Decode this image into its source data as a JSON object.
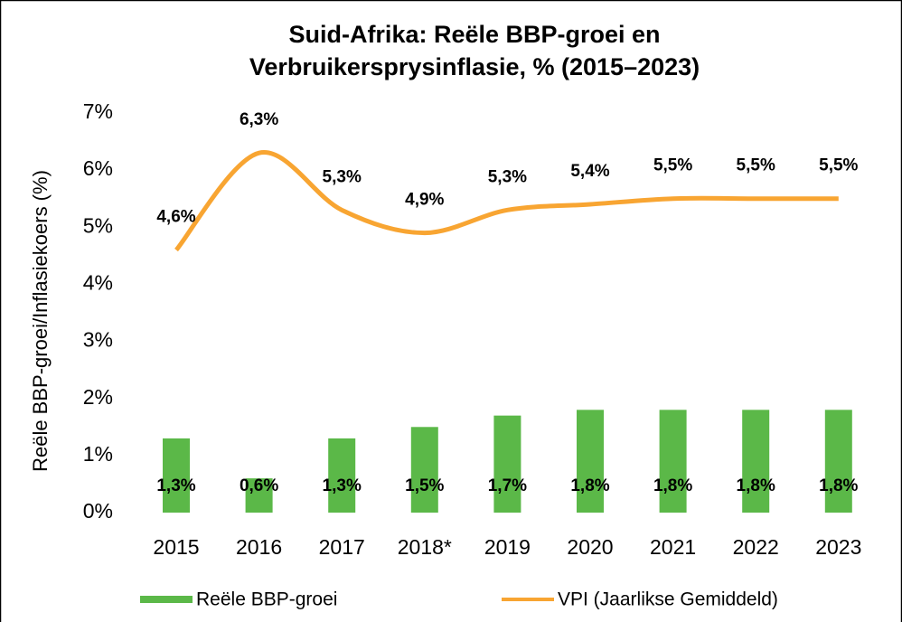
{
  "chart_data": {
    "type": "bar-line",
    "title": [
      "Suid-Afrika: Reële BBP-groei en",
      "Verbruikersprysinflasie, % (2015–2023)"
    ],
    "y_label": "Reële BBP-groei/Inflasiekoers (%)",
    "categories": [
      "2015",
      "2016",
      "2017",
      "2018*",
      "2019",
      "2020",
      "2021",
      "2022",
      "2023"
    ],
    "series": [
      {
        "name": "Reële BBP-groei",
        "type": "bar",
        "color": "#5bb848",
        "values": [
          1.3,
          0.6,
          1.3,
          1.5,
          1.7,
          1.8,
          1.8,
          1.8,
          1.8
        ],
        "value_labels": [
          "1,3%",
          "0,6%",
          "1,3%",
          "1,5%",
          "1,7%",
          "1,8%",
          "1,8%",
          "1,8%",
          "1,8%"
        ]
      },
      {
        "name": "VPI (Jaarlikse Gemiddeld)",
        "type": "line",
        "color": "#f8a532",
        "values": [
          4.6,
          6.3,
          5.3,
          4.9,
          5.3,
          5.4,
          5.5,
          5.5,
          5.5
        ],
        "value_labels": [
          "4,6%",
          "6,3%",
          "5,3%",
          "4,9%",
          "5,3%",
          "5,4%",
          "5,5%",
          "5,5%",
          "5,5%"
        ]
      }
    ],
    "ylim": [
      0,
      7
    ],
    "yticks": [
      {
        "value": 0,
        "label": "0%"
      },
      {
        "value": 1,
        "label": "1%"
      },
      {
        "value": 2,
        "label": "2%"
      },
      {
        "value": 3,
        "label": "3%"
      },
      {
        "value": 4,
        "label": "4%"
      },
      {
        "value": 5,
        "label": "5%"
      },
      {
        "value": 6,
        "label": "6%"
      },
      {
        "value": 7,
        "label": "7%"
      }
    ],
    "grid": false,
    "legend": "bottom"
  }
}
